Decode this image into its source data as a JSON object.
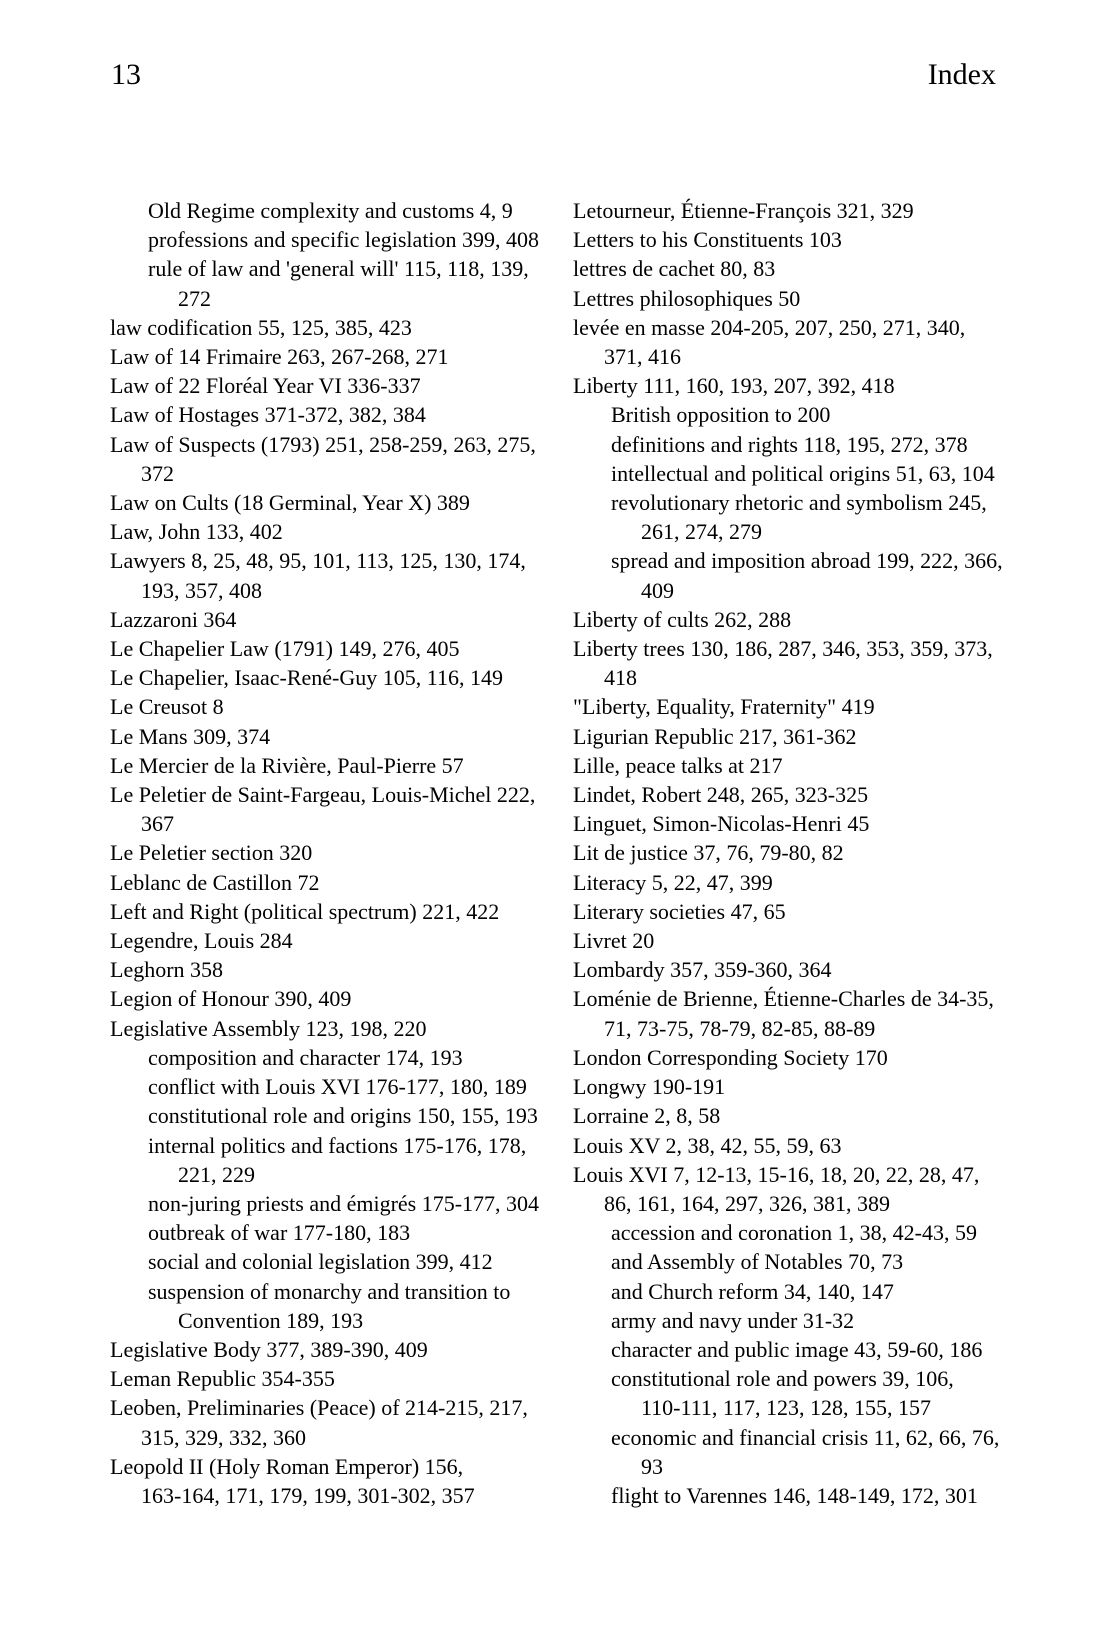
{
  "header": {
    "page_number": "13",
    "title": "Index"
  },
  "index": {
    "columns": {
      "left": [
        {
          "indent": 2,
          "text": "Old Regime complexity and customs 4, 9"
        },
        {
          "indent": 2,
          "text": "professions and specific legislation 399, 408"
        },
        {
          "indent": 2,
          "text": "rule of law and 'general will' 115, 118, 139,"
        },
        {
          "indent": 3,
          "text": "272"
        },
        {
          "indent": 0,
          "text": "law codification 55, 125, 385, 423"
        },
        {
          "indent": 0,
          "text": "Law of 14 Frimaire 263, 267-268, 271"
        },
        {
          "indent": 0,
          "text": "Law of 22 Floréal Year VI 336-337"
        },
        {
          "indent": 0,
          "text": "Law of Hostages 371-372, 382, 384"
        },
        {
          "indent": 0,
          "text": "Law of Suspects (1793) 251, 258-259, 263, 275,"
        },
        {
          "indent": 1,
          "text": "372"
        },
        {
          "indent": 0,
          "text": "Law on Cults (18 Germinal, Year X) 389"
        },
        {
          "indent": 0,
          "text": "Law, John 133, 402"
        },
        {
          "indent": 0,
          "text": "Lawyers 8, 25, 48, 95, 101, 113, 125, 130, 174,"
        },
        {
          "indent": 1,
          "text": "193, 357, 408"
        },
        {
          "indent": 0,
          "text": "Lazzaroni 364"
        },
        {
          "indent": 0,
          "text": "Le Chapelier Law (1791) 149, 276, 405"
        },
        {
          "indent": 0,
          "text": "Le Chapelier, Isaac-René-Guy 105, 116, 149"
        },
        {
          "indent": 0,
          "text": "Le Creusot 8"
        },
        {
          "indent": 0,
          "text": "Le Mans 309, 374"
        },
        {
          "indent": 0,
          "text": "Le Mercier de la Rivière, Paul-Pierre 57"
        },
        {
          "indent": 0,
          "text": "Le Peletier de Saint-Fargeau, Louis-Michel 222,"
        },
        {
          "indent": 1,
          "text": "367"
        },
        {
          "indent": 0,
          "text": "Le Peletier section 320"
        },
        {
          "indent": 0,
          "text": "Leblanc de Castillon 72"
        },
        {
          "indent": 0,
          "text": "Left and Right (political spectrum) 221, 422"
        },
        {
          "indent": 0,
          "text": "Legendre, Louis 284"
        },
        {
          "indent": 0,
          "text": "Leghorn 358"
        },
        {
          "indent": 0,
          "text": "Legion of Honour 390, 409"
        },
        {
          "indent": 0,
          "text": "Legislative Assembly 123, 198, 220"
        },
        {
          "indent": 2,
          "text": "composition and character 174, 193"
        },
        {
          "indent": 2,
          "text": "conflict with Louis XVI 176-177, 180, 189"
        },
        {
          "indent": 2,
          "text": "constitutional role and origins 150, 155, 193"
        },
        {
          "indent": 2,
          "text": "internal politics and factions 175-176, 178,"
        },
        {
          "indent": 3,
          "text": "221, 229"
        },
        {
          "indent": 2,
          "text": "non-juring priests and émigrés 175-177, 304"
        },
        {
          "indent": 2,
          "text": "outbreak of war 177-180, 183"
        },
        {
          "indent": 2,
          "text": "social and colonial legislation 399, 412"
        },
        {
          "indent": 2,
          "text": "suspension of monarchy and transition to"
        },
        {
          "indent": 3,
          "text": "Convention 189, 193"
        },
        {
          "indent": 0,
          "text": "Legislative Body 377, 389-390, 409"
        },
        {
          "indent": 0,
          "text": "Leman Republic 354-355"
        },
        {
          "indent": 0,
          "text": "Leoben, Preliminaries (Peace) of 214-215, 217,"
        },
        {
          "indent": 1,
          "text": "315, 329, 332, 360"
        },
        {
          "indent": 0,
          "text": "Leopold II (Holy Roman Emperor) 156,"
        },
        {
          "indent": 1,
          "text": "163-164, 171, 179, 199, 301-302, 357"
        }
      ],
      "right": [
        {
          "indent": 0,
          "text": "Letourneur, Étienne-François 321, 329"
        },
        {
          "indent": 0,
          "text": "Letters to his Constituents 103"
        },
        {
          "indent": 0,
          "text": "lettres de cachet 80, 83"
        },
        {
          "indent": 0,
          "text": "Lettres philosophiques 50"
        },
        {
          "indent": 0,
          "text": "levée en masse 204-205, 207, 250, 271, 340,"
        },
        {
          "indent": 1,
          "text": "371, 416"
        },
        {
          "indent": 0,
          "text": "Liberty 111, 160, 193, 207, 392, 418"
        },
        {
          "indent": 2,
          "text": "British opposition to 200"
        },
        {
          "indent": 2,
          "text": "definitions and rights 118, 195, 272, 378"
        },
        {
          "indent": 2,
          "text": "intellectual and political origins 51, 63, 104"
        },
        {
          "indent": 2,
          "text": "revolutionary rhetoric and symbolism 245,"
        },
        {
          "indent": 3,
          "text": "261, 274, 279"
        },
        {
          "indent": 2,
          "text": "spread and imposition abroad 199, 222, 366,"
        },
        {
          "indent": 3,
          "text": "409"
        },
        {
          "indent": 0,
          "text": "Liberty of cults 262, 288"
        },
        {
          "indent": 0,
          "text": "Liberty trees 130, 186, 287, 346, 353, 359, 373,"
        },
        {
          "indent": 1,
          "text": "418"
        },
        {
          "indent": 0,
          "text": "\"Liberty, Equality, Fraternity\" 419"
        },
        {
          "indent": 0,
          "text": "Ligurian Republic 217, 361-362"
        },
        {
          "indent": 0,
          "text": "Lille, peace talks at 217"
        },
        {
          "indent": 0,
          "text": "Lindet, Robert 248, 265, 323-325"
        },
        {
          "indent": 0,
          "text": "Linguet, Simon-Nicolas-Henri 45"
        },
        {
          "indent": 0,
          "text": "Lit de justice 37, 76, 79-80, 82"
        },
        {
          "indent": 0,
          "text": "Literacy 5, 22, 47, 399"
        },
        {
          "indent": 0,
          "text": "Literary societies 47, 65"
        },
        {
          "indent": 0,
          "text": "Livret 20"
        },
        {
          "indent": 0,
          "text": "Lombardy 357, 359-360, 364"
        },
        {
          "indent": 0,
          "text": "Loménie de Brienne, Étienne-Charles de 34-35,"
        },
        {
          "indent": 1,
          "text": "71, 73-75, 78-79, 82-85, 88-89"
        },
        {
          "indent": 0,
          "text": "London Corresponding Society 170"
        },
        {
          "indent": 0,
          "text": "Longwy 190-191"
        },
        {
          "indent": 0,
          "text": "Lorraine 2, 8, 58"
        },
        {
          "indent": 0,
          "text": "Louis XV 2, 38, 42, 55, 59, 63"
        },
        {
          "indent": 0,
          "text": "Louis XVI 7, 12-13, 15-16, 18, 20, 22, 28, 47,"
        },
        {
          "indent": 1,
          "text": "86, 161, 164, 297, 326, 381, 389"
        },
        {
          "indent": 2,
          "text": "accession and coronation 1, 38, 42-43, 59"
        },
        {
          "indent": 2,
          "text": "and Assembly of Notables 70, 73"
        },
        {
          "indent": 2,
          "text": "and Church reform 34, 140, 147"
        },
        {
          "indent": 2,
          "text": "army and navy under 31-32"
        },
        {
          "indent": 2,
          "text": "character and public image 43, 59-60, 186"
        },
        {
          "indent": 2,
          "text": "constitutional role and powers 39, 106,"
        },
        {
          "indent": 3,
          "text": "110-111, 117, 123, 128, 155, 157"
        },
        {
          "indent": 2,
          "text": "economic and financial crisis 11, 62, 66, 76,"
        },
        {
          "indent": 3,
          "text": "93"
        },
        {
          "indent": 2,
          "text": "flight to Varennes 146, 148-149, 172, 301"
        }
      ]
    }
  }
}
